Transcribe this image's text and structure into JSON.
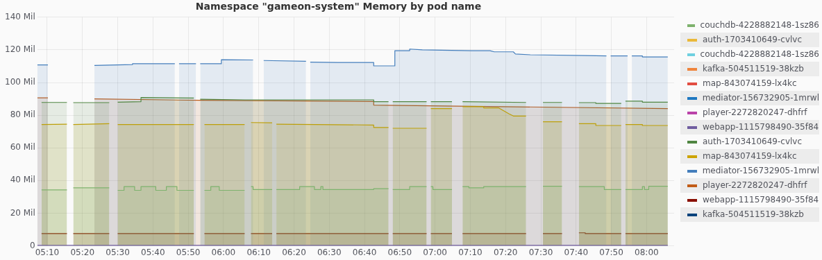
{
  "chart_data": {
    "type": "area",
    "title": "Namespace \"gameon-system\" Memory by pod name",
    "xlim": [
      5.12,
      8.13
    ],
    "xticks": [
      {
        "value": 5.1667,
        "label": "05:10"
      },
      {
        "value": 5.3333,
        "label": "05:20"
      },
      {
        "value": 5.5,
        "label": "05:30"
      },
      {
        "value": 5.6667,
        "label": "05:40"
      },
      {
        "value": 5.8333,
        "label": "05:50"
      },
      {
        "value": 6,
        "label": "06:00"
      },
      {
        "value": 6.1667,
        "label": "06:10"
      },
      {
        "value": 6.3333,
        "label": "06:20"
      },
      {
        "value": 6.5,
        "label": "06:30"
      },
      {
        "value": 6.6667,
        "label": "06:40"
      },
      {
        "value": 6.8333,
        "label": "06:50"
      },
      {
        "value": 7,
        "label": "07:00"
      },
      {
        "value": 7.1667,
        "label": "07:10"
      },
      {
        "value": 7.3333,
        "label": "07:20"
      },
      {
        "value": 7.5,
        "label": "07:30"
      },
      {
        "value": 7.6667,
        "label": "07:40"
      },
      {
        "value": 7.8333,
        "label": "07:50"
      },
      {
        "value": 8,
        "label": "08:00"
      }
    ],
    "ylim": [
      0,
      140
    ],
    "yticks": [
      0,
      {
        "value": 20,
        "label": "20 Mil"
      },
      {
        "value": 40,
        "label": "40 Mil"
      },
      {
        "value": 60,
        "label": "60 Mil"
      },
      {
        "value": 80,
        "label": "80 Mil"
      },
      {
        "value": 100,
        "label": "100 Mil"
      },
      {
        "value": 120,
        "label": "120 Mil"
      },
      {
        "value": 140,
        "label": "140 Mil"
      }
    ],
    "grid": true,
    "legend": "right",
    "series": [
      {
        "name": "couchdb-4228882148-1sz86",
        "color": "#7eb26d",
        "x": [
          5.14,
          5.26,
          5.28,
          5.29,
          5.46,
          5.48,
          5.5,
          5.53,
          5.53,
          5.58,
          5.58,
          5.61,
          5.61,
          5.68,
          5.68,
          5.73,
          5.73,
          5.78,
          5.78,
          5.86,
          5.88,
          5.91,
          5.94,
          5.94,
          5.98,
          5.98,
          6.1,
          6.12,
          6.13,
          6.14,
          6.14,
          6.23,
          6.24,
          6.25,
          6.36,
          6.36,
          6.43,
          6.43,
          6.46,
          6.46,
          6.47,
          6.47,
          6.71,
          6.71,
          6.78,
          6.79,
          6.8,
          6.88,
          6.88,
          6.96,
          6.97,
          6.98,
          6.99,
          6.99,
          7.08,
          7.1,
          7.13,
          7.16,
          7.16,
          7.23,
          7.23,
          7.43,
          7.47,
          7.51,
          7.6,
          7.64,
          7.68,
          7.8,
          7.8,
          7.88,
          7.89,
          7.9,
          7.98,
          7.98,
          7.99,
          7.99,
          8.01,
          8.01,
          8.1
        ],
        "values": [
          34.3,
          34.3,
          null,
          35.5,
          35.5,
          null,
          34,
          34,
          36.3,
          36.3,
          34,
          34,
          36.3,
          36.3,
          34,
          34,
          36.3,
          36.3,
          34,
          34,
          null,
          34,
          34,
          36.3,
          36.3,
          34,
          34,
          null,
          36.3,
          36.3,
          34.5,
          34.5,
          null,
          34.5,
          34.5,
          36.3,
          36.3,
          34.5,
          34.5,
          36.3,
          36.3,
          34.5,
          34.5,
          35,
          35,
          null,
          34.5,
          34.5,
          36.3,
          36.3,
          null,
          36.3,
          36.3,
          34.5,
          34.5,
          null,
          36.3,
          36.3,
          35.5,
          35.5,
          36.3,
          36.3,
          null,
          36.5,
          36.5,
          null,
          36.3,
          36.3,
          34.5,
          34.5,
          null,
          34.5,
          34.5,
          36.3,
          36.3,
          34.5,
          34.5,
          36.5,
          36.5
        ]
      },
      {
        "name": "auth-1703410649-cvlvc",
        "color": "#eab839"
      },
      {
        "name": "couchdb-4228882148-1sz86",
        "color": "#6ed0e0"
      },
      {
        "name": "kafka-504511519-38kzb",
        "color": "#ef843c"
      },
      {
        "name": "map-843074159-lx4kc",
        "color": "#e24d42"
      },
      {
        "name": "mediator-156732905-1mrwl",
        "color": "#1f78c1"
      },
      {
        "name": "player-2272820247-dhfrf",
        "color": "#ba43a9"
      },
      {
        "name": "webapp-1115798490-35f84",
        "color": "#705da0",
        "type": "line",
        "x": [
          5.12,
          8.1
        ],
        "values": [
          0,
          0
        ]
      },
      {
        "name": "auth-1703410649-cvlvc",
        "color": "#508642",
        "x": [
          5.14,
          5.26,
          5.28,
          5.29,
          5.46,
          5.48,
          5.5,
          5.61,
          5.61,
          5.86,
          5.88,
          5.89,
          6.1,
          6.71,
          6.71,
          6.78,
          6.79,
          6.8,
          6.96,
          6.97,
          6.98,
          7.08,
          7.1,
          7.13,
          7.43,
          7.47,
          7.51,
          7.6,
          7.64,
          7.68,
          7.76,
          7.76,
          7.88,
          7.89,
          7.9,
          7.98,
          7.98,
          8.1
        ],
        "values": [
          87.8,
          87.8,
          null,
          87.7,
          87.7,
          null,
          88,
          88.3,
          90.8,
          90.5,
          null,
          89.8,
          89.4,
          89.4,
          88.3,
          88.3,
          null,
          88.3,
          88.3,
          null,
          88.3,
          88.3,
          null,
          88.3,
          87.8,
          null,
          87.8,
          87.8,
          null,
          87.7,
          87.7,
          87.2,
          87.2,
          null,
          88.6,
          88.6,
          88,
          88
        ]
      },
      {
        "name": "map-843074159-lx4kc",
        "color": "#cca300",
        "x": [
          5.14,
          5.26,
          5.28,
          5.29,
          5.46,
          5.48,
          5.5,
          5.86,
          5.88,
          5.91,
          6.1,
          6.12,
          6.13,
          6.23,
          6.24,
          6.25,
          6.71,
          6.71,
          6.78,
          6.79,
          6.8,
          6.96,
          6.97,
          6.98,
          7.08,
          7.1,
          7.13,
          7.23,
          7.23,
          7.3,
          7.35,
          7.37,
          7.43,
          7.47,
          7.51,
          7.6,
          7.64,
          7.68,
          7.76,
          7.76,
          7.88,
          7.89,
          7.9,
          7.98,
          7.98,
          8.1
        ],
        "values": [
          74.3,
          74.5,
          null,
          74.3,
          74.8,
          null,
          74.3,
          74.3,
          null,
          74.3,
          74.3,
          null,
          75.5,
          75.3,
          null,
          74.5,
          74,
          72.5,
          72.5,
          null,
          72,
          72,
          null,
          84,
          84,
          null,
          85.2,
          85.2,
          84.5,
          84.5,
          80.8,
          79.5,
          79.5,
          null,
          76,
          76,
          null,
          74.8,
          74.8,
          73.7,
          73.7,
          null,
          74.3,
          74.3,
          73.7,
          73.7
        ]
      },
      {
        "name": "mediator-156732905-1mrwl",
        "color": "#447ebc",
        "x": [
          5.12,
          5.17,
          5.28,
          5.39,
          5.57,
          5.57,
          5.77,
          5.78,
          5.79,
          5.87,
          5.88,
          5.89,
          5.99,
          5.99,
          6.14,
          6.16,
          6.19,
          6.39,
          6.4,
          6.41,
          6.54,
          6.71,
          6.71,
          6.81,
          6.81,
          6.88,
          6.88,
          6.94,
          7.17,
          7.26,
          7.28,
          7.37,
          7.38,
          7.45,
          7.71,
          7.81,
          7.82,
          7.83,
          7.91,
          7.92,
          7.93,
          7.98,
          7.98,
          8.1
        ],
        "values": [
          110.8,
          110.8,
          null,
          110.5,
          111,
          111.5,
          111.5,
          null,
          111.5,
          111.5,
          null,
          111.5,
          111.5,
          114,
          113.8,
          null,
          113.5,
          113,
          null,
          112.5,
          112.3,
          112.3,
          110.2,
          110.2,
          119.5,
          119.5,
          120.5,
          120,
          119.5,
          119.5,
          118.8,
          118.8,
          117.5,
          117,
          116.5,
          116.3,
          null,
          116.3,
          116.3,
          null,
          116.3,
          116.3,
          115.7,
          115.7
        ]
      },
      {
        "name": "player-2272820247-dhfrf",
        "color": "#c15c17",
        "x": [
          5.12,
          5.17,
          5.28,
          5.39,
          5.89,
          6.71,
          6.71,
          8.1
        ],
        "values": [
          90.6,
          90.6,
          null,
          90,
          89.1,
          88.4,
          86.2,
          84
        ]
      },
      {
        "name": "webapp-1115798490-35f84",
        "color": "#890f02",
        "x": [
          5.14,
          5.26,
          5.28,
          5.29,
          5.46,
          5.48,
          5.5,
          5.86,
          5.88,
          5.91,
          6.1,
          6.12,
          6.13,
          6.23,
          6.24,
          6.25,
          6.78,
          6.79,
          6.8,
          6.96,
          6.97,
          6.98,
          7.08,
          7.1,
          7.13,
          7.43,
          7.47,
          7.51,
          7.6,
          7.64,
          7.68,
          7.71,
          7.71,
          7.88,
          7.89,
          7.9,
          8.1
        ],
        "values": [
          7.5,
          7.5,
          null,
          7.5,
          7.5,
          null,
          7.5,
          7.5,
          null,
          7.5,
          7.5,
          null,
          7.5,
          7.5,
          null,
          7.5,
          7.5,
          null,
          7.5,
          7.5,
          null,
          7.5,
          7.5,
          null,
          7.5,
          7.5,
          null,
          7.5,
          7.5,
          null,
          8,
          8,
          7.5,
          7.5,
          null,
          7.5,
          7.5
        ]
      },
      {
        "name": "kafka-504511519-38kzb",
        "color": "#0a437c"
      }
    ]
  }
}
